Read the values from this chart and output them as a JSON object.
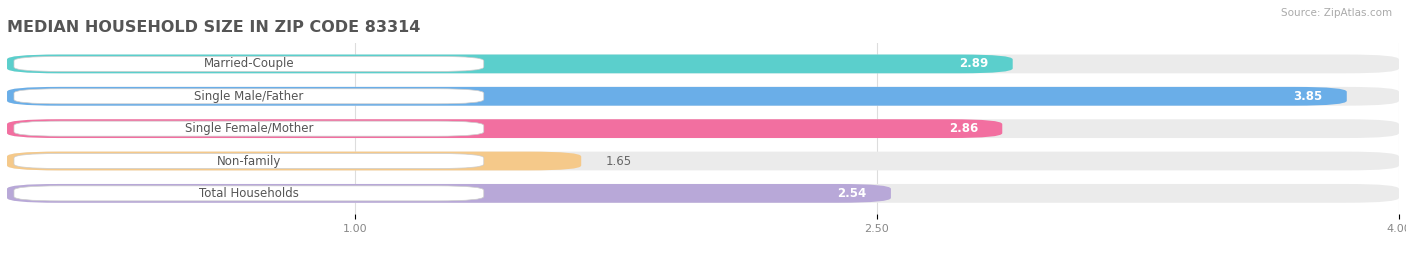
{
  "title": "MEDIAN HOUSEHOLD SIZE IN ZIP CODE 83314",
  "source": "Source: ZipAtlas.com",
  "categories": [
    "Married-Couple",
    "Single Male/Father",
    "Single Female/Mother",
    "Non-family",
    "Total Households"
  ],
  "values": [
    2.89,
    3.85,
    2.86,
    1.65,
    2.54
  ],
  "bar_colors": [
    "#5BCFCC",
    "#6aaee8",
    "#f26fa0",
    "#f5c98a",
    "#b8a8d8"
  ],
  "bg_track_color": "#ebebeb",
  "x_min": 0.0,
  "x_max": 4.0,
  "x_ticks": [
    1.0,
    2.5,
    4.0
  ],
  "title_fontsize": 11.5,
  "label_fontsize": 8.5,
  "value_fontsize": 8.5,
  "bar_height": 0.58,
  "fig_bg": "#ffffff",
  "title_color": "#555555",
  "source_color": "#aaaaaa",
  "tick_color": "#888888",
  "label_text_color": "#555555",
  "grid_color": "#dddddd"
}
